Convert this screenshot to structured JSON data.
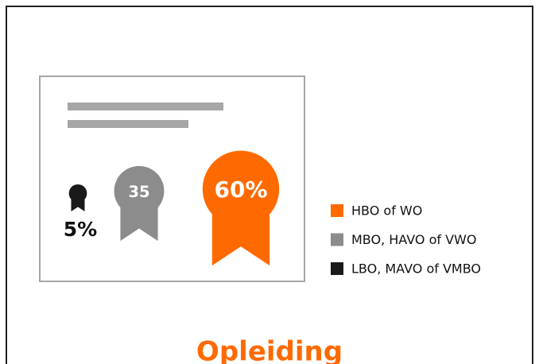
{
  "chart_data": {
    "type": "medal",
    "title": "Opleiding",
    "categories": [
      "LBO, MAVO of VMBO",
      "MBO, HAVO of VWO",
      "HBO of WO"
    ],
    "values": [
      5,
      35,
      60
    ],
    "value_labels": [
      "5%",
      "35",
      "60%"
    ],
    "colors": [
      "#1a1a1a",
      "#8c8c8c",
      "#ff6a00"
    ]
  }
}
